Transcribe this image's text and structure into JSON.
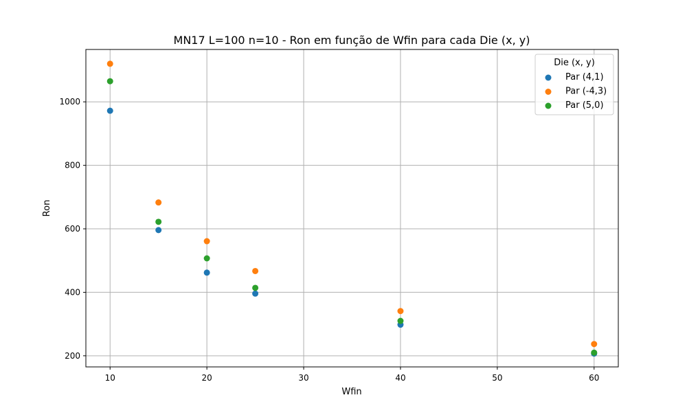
{
  "chart_data": {
    "type": "scatter",
    "title": "MN17 L=100 n=10 - Ron em função de Wfin para cada Die (x, y)",
    "xlabel": "Wfin",
    "ylabel": "Ron",
    "xlim": [
      7.5,
      62.5
    ],
    "ylim": [
      165,
      1165
    ],
    "xticks": [
      10,
      20,
      30,
      40,
      50,
      60
    ],
    "yticks": [
      200,
      400,
      600,
      800,
      1000
    ],
    "grid": true,
    "legend": {
      "title": "Die (x, y)",
      "placement": "top-right"
    },
    "series": [
      {
        "name": "Par (4,1)",
        "color": "#1f77b4",
        "points": [
          {
            "x": 10,
            "y": 972
          },
          {
            "x": 15,
            "y": 596
          },
          {
            "x": 20,
            "y": 462
          },
          {
            "x": 25,
            "y": 396
          },
          {
            "x": 40,
            "y": 298
          },
          {
            "x": 60,
            "y": 207
          }
        ]
      },
      {
        "name": "Par (-4,3)",
        "color": "#ff7f0e",
        "points": [
          {
            "x": 10,
            "y": 1120
          },
          {
            "x": 15,
            "y": 683
          },
          {
            "x": 20,
            "y": 561
          },
          {
            "x": 25,
            "y": 467
          },
          {
            "x": 40,
            "y": 341
          },
          {
            "x": 60,
            "y": 237
          }
        ]
      },
      {
        "name": "Par (5,0)",
        "color": "#2ca02c",
        "points": [
          {
            "x": 10,
            "y": 1065
          },
          {
            "x": 15,
            "y": 622
          },
          {
            "x": 20,
            "y": 507
          },
          {
            "x": 25,
            "y": 414
          },
          {
            "x": 40,
            "y": 310
          },
          {
            "x": 60,
            "y": 210
          }
        ]
      }
    ]
  }
}
